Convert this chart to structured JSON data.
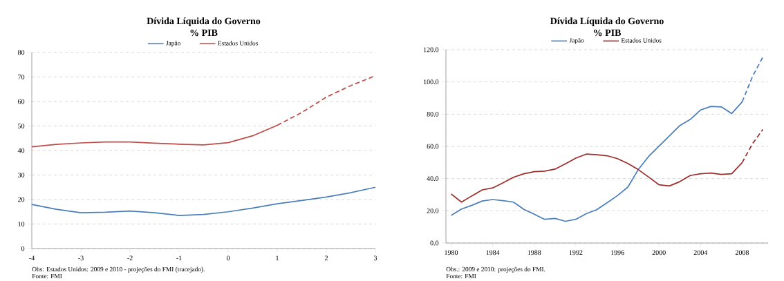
{
  "chart_data": [
    {
      "type": "line",
      "title": "Dívida Líquida do Governo",
      "subtitle": "% PIB",
      "xlim": [
        -4,
        3
      ],
      "xticks": [
        -4,
        -3,
        -2,
        -1,
        0,
        1,
        2,
        3
      ],
      "ylim": [
        0,
        80
      ],
      "yticks": [
        0,
        10,
        20,
        30,
        40,
        50,
        60,
        70,
        80
      ],
      "grid": "y",
      "legend": "top",
      "marker": "none",
      "annotations": [
        "Obs: Estados Unidos: 2009 e 2010 - projeções do FMI (tracejado).",
        "Fonte: FMI"
      ],
      "series": [
        {
          "name": "Japão",
          "color": "#4a7ebb",
          "line_style": "solid",
          "x": [
            -4,
            -3.5,
            -3,
            -2.5,
            -2,
            -1.5,
            -1,
            -0.5,
            0,
            0.5,
            1,
            1.5,
            2,
            2.5,
            3
          ],
          "values": [
            18,
            16,
            14.6,
            14.8,
            15.3,
            14.6,
            13.5,
            13.9,
            15,
            16.5,
            18.3,
            19.6,
            21,
            22.8,
            25
          ]
        },
        {
          "name": "Estados Unidos",
          "color": "#be4b48",
          "line_style": "solid",
          "x": [
            -4,
            -3.5,
            -3,
            -2.5,
            -2,
            -1.5,
            -1,
            -0.5,
            0,
            0.5,
            1
          ],
          "values": [
            41.5,
            42.5,
            43.1,
            43.5,
            43.5,
            43,
            42.6,
            42.3,
            43.2,
            46,
            50.3
          ]
        },
        {
          "color": "#be4b48",
          "line_style": "dashed",
          "x": [
            1,
            1.5,
            2,
            2.5,
            3
          ],
          "values": [
            50.3,
            55.5,
            61.8,
            66.5,
            70.5
          ]
        }
      ]
    },
    {
      "type": "line",
      "title": "Dívida Líquida do Governo",
      "subtitle": "% PIB",
      "xlim": [
        1979.5,
        2010.5
      ],
      "xticks": [
        1980,
        1984,
        1988,
        1992,
        1996,
        2000,
        2004,
        2008
      ],
      "ylim": [
        0,
        120
      ],
      "yticks": [
        {
          "value": 0,
          "label": "0.0"
        },
        {
          "value": 20,
          "label": "20.0"
        },
        {
          "value": 40,
          "label": "40.0"
        },
        {
          "value": 60,
          "label": "60.0"
        },
        {
          "value": 80,
          "label": "80.0"
        },
        {
          "value": 100,
          "label": "100.0"
        },
        {
          "value": 120,
          "label": "120.0"
        }
      ],
      "grid": "y",
      "legend": "top",
      "marker": "none",
      "annotations": [
        "Obs.: 2009 e 2010: projeções do FMI.",
        "Fonte: FMI"
      ],
      "series": [
        {
          "name": "Japão",
          "color": "#4a7ebb",
          "line_style": "solid",
          "x": [
            1980,
            1981,
            1982,
            1983,
            1984,
            1985,
            1986,
            1987,
            1988,
            1989,
            1990,
            1991,
            1992,
            1993,
            1994,
            1995,
            1996,
            1997,
            1998,
            1999,
            2000,
            2001,
            2002,
            2003,
            2004,
            2005,
            2006,
            2007,
            2008
          ],
          "values": [
            17.1,
            21.1,
            23.4,
            26.1,
            27,
            26.3,
            25.4,
            20.9,
            17.9,
            14.7,
            15.3,
            13.5,
            14.7,
            18.2,
            20.7,
            25,
            29.4,
            34.7,
            45.5,
            53.7,
            60.2,
            66.5,
            72.9,
            76.7,
            82.6,
            84.8,
            84.5,
            80.4,
            87.6
          ]
        },
        {
          "name": "Estados Unidos",
          "color": "#9b2d2a",
          "line_style": "solid",
          "x": [
            1980,
            1981,
            1982,
            1983,
            1984,
            1985,
            1986,
            1987,
            1988,
            1989,
            1990,
            1991,
            1992,
            1993,
            1994,
            1995,
            1996,
            1997,
            1998,
            1999,
            2000,
            2001,
            2002,
            2003,
            2004,
            2005,
            2006,
            2007,
            2008
          ],
          "values": [
            30.5,
            25.4,
            29.3,
            33,
            34.2,
            37.4,
            40.8,
            43,
            44.3,
            44.6,
            45.9,
            49.2,
            52.7,
            55.2,
            54.8,
            54.2,
            52.4,
            49.4,
            45.6,
            41,
            36.2,
            35.4,
            38.1,
            41.9,
            43,
            43.4,
            42.6,
            43,
            49.9
          ]
        },
        {
          "color": "#4a7ebb",
          "line_style": "dashed",
          "x": [
            2008,
            2009,
            2010
          ],
          "values": [
            87.6,
            103.4,
            115.5
          ]
        },
        {
          "color": "#9b2d2a",
          "line_style": "dashed",
          "x": [
            2008,
            2009,
            2010
          ],
          "values": [
            49.9,
            61.7,
            70.5
          ]
        }
      ]
    }
  ]
}
